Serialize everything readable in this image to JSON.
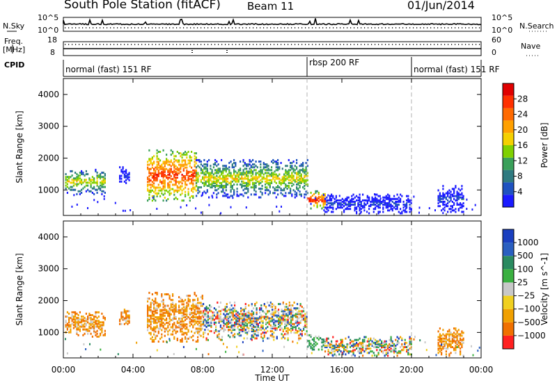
{
  "header": {
    "station": "South Pole Station (fitACF)",
    "beam": "Beam 11",
    "date": "01/Jun/2014"
  },
  "side_labels": {
    "nsky": "N.Sky",
    "nsearch": "N.Search",
    "freq_line1": "Freq.",
    "freq_line2": "[MHz]",
    "nave": "Nave",
    "cpid": "CPID"
  },
  "cpid_segments": [
    {
      "label": "normal (fast) 151 RF",
      "start": "00:00"
    },
    {
      "label": "rbsp 200 RF",
      "start": "14:00"
    },
    {
      "label": "normal (fast) 151 RF",
      "start": "20:00"
    }
  ],
  "colors": {
    "power_scale": [
      "#1a1aff",
      "#1f52c0",
      "#2f7a80",
      "#3aa05a",
      "#7fd000",
      "#f4d000",
      "#ffa000",
      "#ff6a00",
      "#ff3000",
      "#e00000"
    ],
    "velocity_scale": [
      "#1a3fbf",
      "#2a5fc0",
      "#2a8a60",
      "#3ab040",
      "#c8c8c8",
      "#f0d020",
      "#f0a000",
      "#f07000",
      "#ff2020"
    ],
    "guide_line": "#b0b0b0"
  },
  "chart_data": [
    {
      "type": "line",
      "name": "noise-sky-and-search",
      "left_axis_ticks": [
        "10^5",
        "10^0"
      ],
      "right_axis_ticks": [
        "10^5",
        "10^0"
      ],
      "series": [
        {
          "name": "N.Sky",
          "level": "high"
        },
        {
          "name": "N.Search",
          "level": "low",
          "style": "dotted"
        }
      ]
    },
    {
      "type": "line",
      "name": "frequency-and-nave",
      "left_axis_ticks": [
        "18",
        "8"
      ],
      "right_axis_ticks": [
        "60",
        "0"
      ],
      "series": [
        {
          "name": "Freq.",
          "unit": "MHz",
          "approx_value": 13
        },
        {
          "name": "Nave",
          "style": "dotted",
          "approx_value": 35
        }
      ]
    },
    {
      "type": "heatmap",
      "name": "power",
      "ylabel": "Slant Range [km]",
      "colorbar_label": "Power [dB]",
      "colorbar_ticks": [
        "4",
        "8",
        "12",
        "16",
        "20",
        "24",
        "28"
      ],
      "y_ticks": [
        "1000",
        "2000",
        "3000",
        "4000"
      ],
      "ylim": [
        200,
        4500
      ],
      "x_ticks": [
        "00:00",
        "04:00",
        "08:00",
        "12:00",
        "16:00",
        "20:00",
        "00:00"
      ],
      "echo_regions": [
        {
          "start_h": 0.1,
          "end_h": 2.4,
          "range_km": [
            900,
            1700
          ],
          "level": "medium"
        },
        {
          "start_h": 3.2,
          "end_h": 3.8,
          "range_km": [
            1250,
            1750
          ],
          "level": "low"
        },
        {
          "start_h": 4.8,
          "end_h": 7.6,
          "range_km": [
            700,
            2300
          ],
          "level": "high"
        },
        {
          "start_h": 7.6,
          "end_h": 14.0,
          "range_km": [
            800,
            2000
          ],
          "level": "medium"
        },
        {
          "start_h": 14.0,
          "end_h": 15.0,
          "range_km": [
            450,
            1000
          ],
          "level": "high"
        },
        {
          "start_h": 15.0,
          "end_h": 20.0,
          "range_km": [
            300,
            900
          ],
          "level": "low"
        },
        {
          "start_h": 21.5,
          "end_h": 23.0,
          "range_km": [
            300,
            1200
          ],
          "level": "low"
        }
      ]
    },
    {
      "type": "heatmap",
      "name": "velocity",
      "ylabel": "Slant Range [km]",
      "colorbar_label": "Velocity [m s^-1]",
      "colorbar_ticks": [
        "1000",
        "500",
        "100",
        "25",
        "−25",
        "−100",
        "−500",
        "−1000"
      ],
      "y_ticks": [
        "1000",
        "2000",
        "3000",
        "4000"
      ],
      "ylim": [
        200,
        4500
      ],
      "x_ticks": [
        "00:00",
        "04:00",
        "08:00",
        "12:00",
        "16:00",
        "20:00",
        "00:00"
      ],
      "xlabel": "Time UT",
      "echo_regions": [
        {
          "start_h": 0.1,
          "end_h": 2.4,
          "range_km": [
            900,
            1700
          ],
          "velocity": "negative"
        },
        {
          "start_h": 3.2,
          "end_h": 3.8,
          "range_km": [
            1250,
            1750
          ],
          "velocity": "negative"
        },
        {
          "start_h": 4.8,
          "end_h": 8.0,
          "range_km": [
            700,
            2300
          ],
          "velocity": "negative"
        },
        {
          "start_h": 8.0,
          "end_h": 14.0,
          "range_km": [
            800,
            2000
          ],
          "velocity": "mixed"
        },
        {
          "start_h": 14.0,
          "end_h": 15.0,
          "range_km": [
            450,
            1000
          ],
          "velocity": "positive"
        },
        {
          "start_h": 15.0,
          "end_h": 20.0,
          "range_km": [
            300,
            900
          ],
          "velocity": "mixed"
        },
        {
          "start_h": 21.5,
          "end_h": 23.0,
          "range_km": [
            300,
            1200
          ],
          "velocity": "negative"
        }
      ]
    }
  ]
}
